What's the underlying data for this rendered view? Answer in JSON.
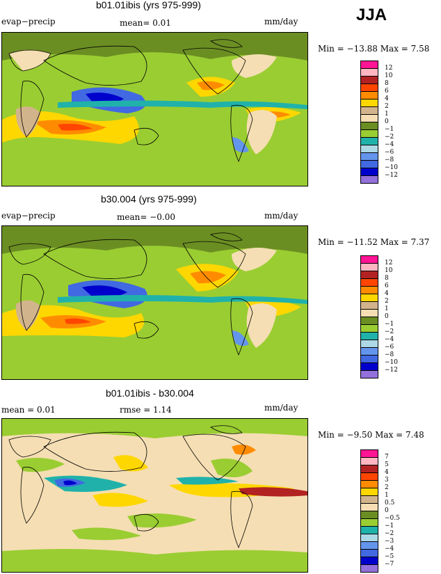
{
  "season": "JJA",
  "palette": {
    "pos_levels": [
      "#ff1493",
      "#ffb6c1",
      "#b22222",
      "#ff4500",
      "#ff8c00",
      "#ffd700",
      "#d2b48c",
      "#f5deb3"
    ],
    "neg_levels": [
      "#6b8e23",
      "#9acd32",
      "#20b2aa",
      "#add8e6",
      "#6495ed",
      "#4169e1",
      "#0000cd",
      "#9370db"
    ]
  },
  "chart_data": [
    {
      "type": "heatmap",
      "title": "b01.01ibis (yrs 975-999)",
      "left_label": "evap−precip",
      "stat_text": "mean=   0.01",
      "units": "mm/day",
      "range_text": "Min = −13.88 Max =    7.58",
      "min": -13.88,
      "max": 7.58,
      "mean": 0.01,
      "levels": [
        "12",
        "10",
        "8",
        "6",
        "4",
        "2",
        "1",
        "0",
        "−1",
        "−2",
        "−4",
        "−6",
        "−8",
        "−10",
        "−12"
      ]
    },
    {
      "type": "heatmap",
      "title": "b30.004 (yrs 975-999)",
      "left_label": "evap−precip",
      "stat_text": "mean=   −0.00",
      "units": "mm/day",
      "range_text": "Min = −11.52 Max =    7.37",
      "min": -11.52,
      "max": 7.37,
      "mean": -0.0,
      "levels": [
        "12",
        "10",
        "8",
        "6",
        "4",
        "2",
        "1",
        "0",
        "−1",
        "−2",
        "−4",
        "−6",
        "−8",
        "−10",
        "−12"
      ]
    },
    {
      "type": "heatmap",
      "title": "b01.01ibis - b30.004",
      "left_label": "mean =     0.01",
      "stat_text": "rmse =    1.14",
      "units": "mm/day",
      "range_text": "Min =   −9.50 Max =    7.48",
      "min": -9.5,
      "max": 7.48,
      "mean": 0.01,
      "rmse": 1.14,
      "levels": [
        "7",
        "5",
        "4",
        "3",
        "2",
        "1",
        "0.5",
        "0",
        "−0.5",
        "−1",
        "−2",
        "−3",
        "−4",
        "−5",
        "−7"
      ]
    }
  ]
}
